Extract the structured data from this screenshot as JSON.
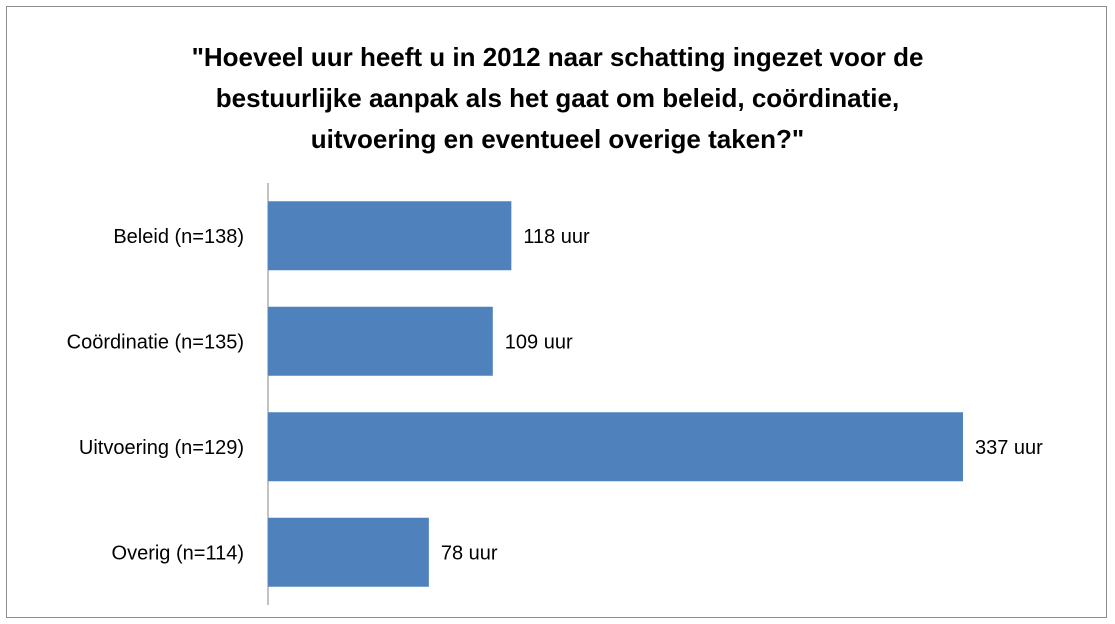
{
  "chart_data": {
    "type": "bar",
    "orientation": "horizontal",
    "title_lines": [
      "\"Hoeveel uur heeft u in 2012 naar schatting ingezet voor de",
      "bestuurlijke aanpak als het gaat om beleid, coördinatie,",
      "uitvoering en eventueel overige taken?\""
    ],
    "categories": [
      "Beleid (n=138)",
      "Coördinatie (n=135)",
      "Uitvoering (n=129)",
      "Overig (n=114)"
    ],
    "values": [
      118,
      109,
      337,
      78
    ],
    "data_labels": [
      "118 uur",
      "109 uur",
      "337 uur",
      "78 uur"
    ],
    "unit": "uur",
    "xlim": [
      0,
      350
    ],
    "bar_color": "#4f81bd",
    "grid": false,
    "legend": "none"
  }
}
